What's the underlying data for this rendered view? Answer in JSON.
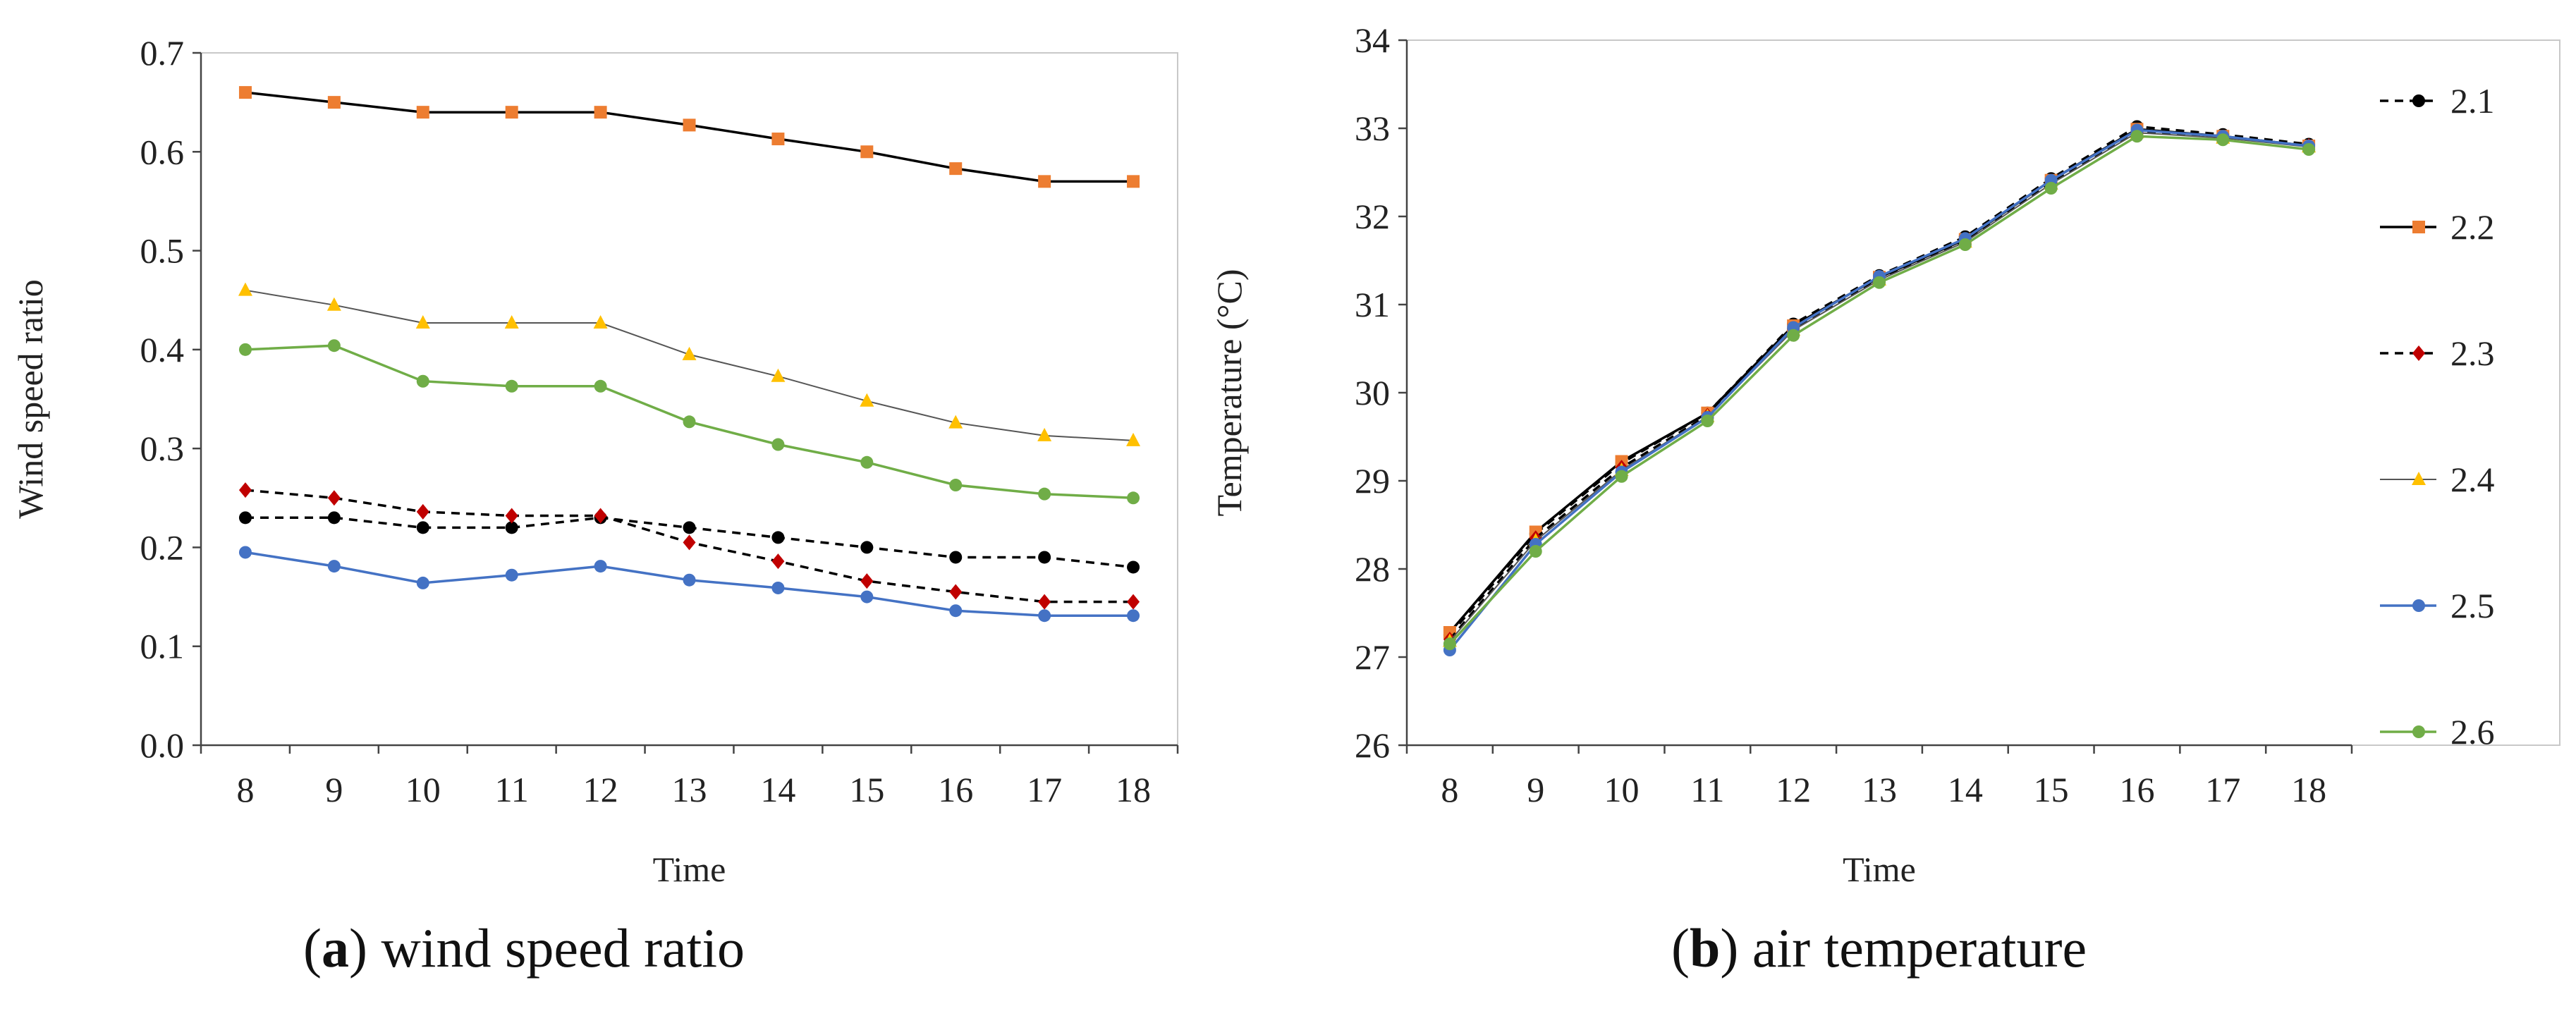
{
  "captions": {
    "a": {
      "letter": "a",
      "text": " wind speed ratio"
    },
    "b": {
      "letter": "b",
      "text": " air temperature"
    }
  },
  "chart_data": [
    {
      "type": "line",
      "id": "a",
      "title": "wind speed ratio",
      "xlabel": "Time",
      "ylabel": "Wind speed  ratio",
      "x": [
        8,
        9,
        10,
        11,
        12,
        13,
        14,
        15,
        16,
        17,
        18
      ],
      "ylim": [
        0,
        0.7
      ],
      "yticks": [
        "0.0",
        "0.1",
        "0.2",
        "0.3",
        "0.4",
        "0.5",
        "0.6",
        "0.7"
      ],
      "series": [
        {
          "name": "2.1",
          "color": "#000000",
          "line_color": "#000000",
          "dashed": true,
          "marker": "circle",
          "values": [
            0.23,
            0.23,
            0.22,
            0.22,
            0.23,
            0.22,
            0.21,
            0.2,
            0.19,
            0.19,
            0.18
          ]
        },
        {
          "name": "2.2",
          "color": "#ED7D31",
          "line_color": "#000000",
          "dashed": false,
          "marker": "square",
          "values": [
            0.66,
            0.65,
            0.64,
            0.64,
            0.64,
            0.627,
            0.613,
            0.6,
            0.583,
            0.57,
            0.57
          ]
        },
        {
          "name": "2.3",
          "color": "#C00000",
          "line_color": "#000000",
          "dashed": true,
          "marker": "diamond",
          "values": [
            0.258,
            0.25,
            0.236,
            0.232,
            0.232,
            0.205,
            0.186,
            0.166,
            0.155,
            0.145,
            0.145
          ]
        },
        {
          "name": "2.4",
          "color": "#FFC000",
          "line_color": "#555555",
          "dashed": false,
          "marker": "triangle",
          "values": [
            0.46,
            0.445,
            0.427,
            0.427,
            0.427,
            0.395,
            0.373,
            0.348,
            0.326,
            0.313,
            0.308
          ]
        },
        {
          "name": "2.5",
          "color": "#4472C4",
          "line_color": "#4472C4",
          "dashed": false,
          "marker": "circle",
          "values": [
            0.195,
            0.181,
            0.164,
            0.172,
            0.181,
            0.167,
            0.159,
            0.15,
            0.136,
            0.131,
            0.131
          ]
        },
        {
          "name": "2.6",
          "color": "#70AD47",
          "line_color": "#70AD47",
          "dashed": false,
          "marker": "circle",
          "values": [
            0.4,
            0.404,
            0.368,
            0.363,
            0.363,
            0.327,
            0.304,
            0.286,
            0.263,
            0.254,
            0.25
          ]
        }
      ]
    },
    {
      "type": "line",
      "id": "b",
      "title": "air temperature",
      "xlabel": "Time",
      "ylabel": "Temperature (°C)",
      "x": [
        8,
        9,
        10,
        11,
        12,
        13,
        14,
        15,
        16,
        17,
        18
      ],
      "ylim": [
        26,
        34
      ],
      "yticks": [
        "26",
        "27",
        "28",
        "29",
        "30",
        "31",
        "32",
        "33",
        "34"
      ],
      "legend_position": "right",
      "series": [
        {
          "name": "2.1",
          "color": "#000000",
          "line_color": "#000000",
          "dashed": true,
          "marker": "circle",
          "values": [
            27.25,
            28.4,
            29.2,
            29.77,
            30.78,
            31.33,
            31.77,
            32.43,
            33.02,
            32.93,
            32.82
          ]
        },
        {
          "name": "2.2",
          "color": "#ED7D31",
          "line_color": "#000000",
          "dashed": false,
          "marker": "square",
          "values": [
            27.28,
            28.42,
            29.22,
            29.77,
            30.76,
            31.31,
            31.74,
            32.41,
            32.99,
            32.91,
            32.8
          ]
        },
        {
          "name": "2.3",
          "color": "#C00000",
          "line_color": "#000000",
          "dashed": true,
          "marker": "diamond",
          "values": [
            27.2,
            28.35,
            29.15,
            29.74,
            30.72,
            31.29,
            31.72,
            32.38,
            32.96,
            32.9,
            32.8
          ]
        },
        {
          "name": "2.4",
          "color": "#FFC000",
          "line_color": "#555555",
          "dashed": false,
          "marker": "triangle",
          "values": [
            27.18,
            28.32,
            29.12,
            29.73,
            30.71,
            31.28,
            31.71,
            32.37,
            32.95,
            32.89,
            32.79
          ]
        },
        {
          "name": "2.5",
          "color": "#4472C4",
          "line_color": "#4472C4",
          "dashed": false,
          "marker": "circle",
          "values": [
            27.08,
            28.28,
            29.1,
            29.72,
            30.74,
            31.32,
            31.75,
            32.41,
            32.98,
            32.91,
            32.8
          ]
        },
        {
          "name": "2.6",
          "color": "#70AD47",
          "line_color": "#70AD47",
          "dashed": false,
          "marker": "circle",
          "values": [
            27.15,
            28.2,
            29.05,
            29.68,
            30.65,
            31.25,
            31.68,
            32.32,
            32.91,
            32.87,
            32.76
          ]
        }
      ]
    }
  ]
}
